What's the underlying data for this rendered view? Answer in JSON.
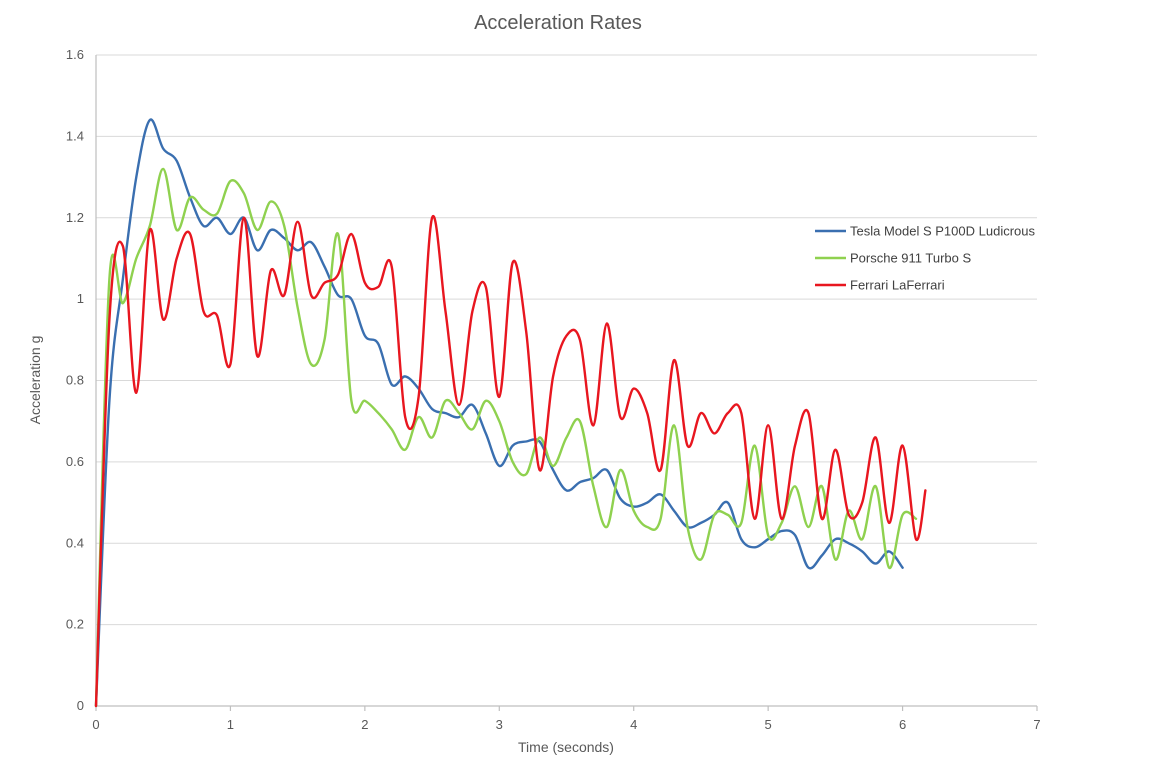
{
  "chart_data": {
    "type": "line",
    "title": "Acceleration Rates",
    "xlabel": "Time (seconds)",
    "ylabel": "Acceleration g",
    "xlim": [
      0,
      7
    ],
    "ylim": [
      0,
      1.6
    ],
    "xticks": [
      0,
      1,
      2,
      3,
      4,
      5,
      6,
      7
    ],
    "yticks": [
      0,
      0.2,
      0.4,
      0.6,
      0.8,
      1,
      1.2,
      1.4,
      1.6
    ],
    "xtick_labels": [
      "0",
      "1",
      "2",
      "3",
      "4",
      "5",
      "6",
      "7"
    ],
    "ytick_labels": [
      "0",
      "0.2",
      "0.4",
      "0.6",
      "0.8",
      "1",
      "1.2",
      "1.4",
      "1.6"
    ],
    "grid": "horizontal",
    "legend_position": "right",
    "series": [
      {
        "name": "Tesla Model S P100D Ludicrous",
        "color": "#3a6fb0",
        "points": [
          [
            0,
            0
          ],
          [
            0.1,
            0.75
          ],
          [
            0.2,
            1.05
          ],
          [
            0.3,
            1.3
          ],
          [
            0.4,
            1.44
          ],
          [
            0.5,
            1.37
          ],
          [
            0.6,
            1.34
          ],
          [
            0.7,
            1.25
          ],
          [
            0.8,
            1.18
          ],
          [
            0.9,
            1.2
          ],
          [
            1.0,
            1.16
          ],
          [
            1.1,
            1.2
          ],
          [
            1.2,
            1.12
          ],
          [
            1.3,
            1.17
          ],
          [
            1.4,
            1.15
          ],
          [
            1.5,
            1.12
          ],
          [
            1.6,
            1.14
          ],
          [
            1.7,
            1.08
          ],
          [
            1.8,
            1.01
          ],
          [
            1.9,
            1.0
          ],
          [
            2.0,
            0.91
          ],
          [
            2.1,
            0.89
          ],
          [
            2.2,
            0.79
          ],
          [
            2.3,
            0.81
          ],
          [
            2.4,
            0.78
          ],
          [
            2.5,
            0.73
          ],
          [
            2.6,
            0.72
          ],
          [
            2.7,
            0.71
          ],
          [
            2.8,
            0.74
          ],
          [
            2.9,
            0.67
          ],
          [
            3.0,
            0.59
          ],
          [
            3.1,
            0.64
          ],
          [
            3.2,
            0.65
          ],
          [
            3.3,
            0.65
          ],
          [
            3.4,
            0.58
          ],
          [
            3.5,
            0.53
          ],
          [
            3.6,
            0.55
          ],
          [
            3.7,
            0.56
          ],
          [
            3.8,
            0.58
          ],
          [
            3.9,
            0.51
          ],
          [
            4.0,
            0.49
          ],
          [
            4.1,
            0.5
          ],
          [
            4.2,
            0.52
          ],
          [
            4.3,
            0.48
          ],
          [
            4.4,
            0.44
          ],
          [
            4.5,
            0.45
          ],
          [
            4.6,
            0.47
          ],
          [
            4.7,
            0.5
          ],
          [
            4.8,
            0.41
          ],
          [
            4.9,
            0.39
          ],
          [
            5.0,
            0.41
          ],
          [
            5.1,
            0.43
          ],
          [
            5.2,
            0.42
          ],
          [
            5.3,
            0.34
          ],
          [
            5.4,
            0.37
          ],
          [
            5.5,
            0.41
          ],
          [
            5.6,
            0.4
          ],
          [
            5.7,
            0.38
          ],
          [
            5.8,
            0.35
          ],
          [
            5.9,
            0.38
          ],
          [
            6.0,
            0.34
          ]
        ]
      },
      {
        "name": "Porsche 911 Turbo S",
        "color": "#8fd14f",
        "points": [
          [
            0,
            0
          ],
          [
            0.1,
            1.05
          ],
          [
            0.2,
            0.99
          ],
          [
            0.3,
            1.1
          ],
          [
            0.4,
            1.18
          ],
          [
            0.5,
            1.32
          ],
          [
            0.6,
            1.17
          ],
          [
            0.7,
            1.25
          ],
          [
            0.8,
            1.22
          ],
          [
            0.9,
            1.21
          ],
          [
            1.0,
            1.29
          ],
          [
            1.1,
            1.26
          ],
          [
            1.2,
            1.17
          ],
          [
            1.3,
            1.24
          ],
          [
            1.4,
            1.18
          ],
          [
            1.5,
            0.98
          ],
          [
            1.6,
            0.84
          ],
          [
            1.7,
            0.9
          ],
          [
            1.8,
            1.16
          ],
          [
            1.9,
            0.75
          ],
          [
            2.0,
            0.75
          ],
          [
            2.1,
            0.72
          ],
          [
            2.2,
            0.68
          ],
          [
            2.3,
            0.63
          ],
          [
            2.4,
            0.71
          ],
          [
            2.5,
            0.66
          ],
          [
            2.6,
            0.75
          ],
          [
            2.7,
            0.72
          ],
          [
            2.8,
            0.68
          ],
          [
            2.9,
            0.75
          ],
          [
            3.0,
            0.7
          ],
          [
            3.1,
            0.6
          ],
          [
            3.2,
            0.57
          ],
          [
            3.3,
            0.66
          ],
          [
            3.4,
            0.59
          ],
          [
            3.5,
            0.66
          ],
          [
            3.6,
            0.7
          ],
          [
            3.7,
            0.54
          ],
          [
            3.8,
            0.44
          ],
          [
            3.9,
            0.58
          ],
          [
            4.0,
            0.48
          ],
          [
            4.1,
            0.44
          ],
          [
            4.2,
            0.46
          ],
          [
            4.3,
            0.69
          ],
          [
            4.4,
            0.44
          ],
          [
            4.5,
            0.36
          ],
          [
            4.6,
            0.47
          ],
          [
            4.7,
            0.47
          ],
          [
            4.8,
            0.45
          ],
          [
            4.9,
            0.64
          ],
          [
            5.0,
            0.42
          ],
          [
            5.1,
            0.45
          ],
          [
            5.2,
            0.54
          ],
          [
            5.3,
            0.44
          ],
          [
            5.4,
            0.54
          ],
          [
            5.5,
            0.36
          ],
          [
            5.6,
            0.48
          ],
          [
            5.7,
            0.41
          ],
          [
            5.8,
            0.54
          ],
          [
            5.9,
            0.34
          ],
          [
            6.0,
            0.47
          ],
          [
            6.1,
            0.46
          ]
        ]
      },
      {
        "name": "Ferrari LaFerrari",
        "color": "#e8161f",
        "points": [
          [
            0,
            0
          ],
          [
            0.1,
            0.95
          ],
          [
            0.2,
            1.13
          ],
          [
            0.3,
            0.77
          ],
          [
            0.4,
            1.17
          ],
          [
            0.5,
            0.95
          ],
          [
            0.6,
            1.1
          ],
          [
            0.7,
            1.16
          ],
          [
            0.8,
            0.97
          ],
          [
            0.9,
            0.96
          ],
          [
            1.0,
            0.84
          ],
          [
            1.1,
            1.2
          ],
          [
            1.2,
            0.86
          ],
          [
            1.3,
            1.07
          ],
          [
            1.4,
            1.01
          ],
          [
            1.5,
            1.19
          ],
          [
            1.6,
            1.01
          ],
          [
            1.7,
            1.04
          ],
          [
            1.8,
            1.06
          ],
          [
            1.9,
            1.16
          ],
          [
            2.0,
            1.04
          ],
          [
            2.1,
            1.03
          ],
          [
            2.2,
            1.08
          ],
          [
            2.3,
            0.71
          ],
          [
            2.4,
            0.76
          ],
          [
            2.5,
            1.2
          ],
          [
            2.6,
            0.97
          ],
          [
            2.7,
            0.74
          ],
          [
            2.8,
            0.97
          ],
          [
            2.9,
            1.03
          ],
          [
            3.0,
            0.76
          ],
          [
            3.1,
            1.09
          ],
          [
            3.2,
            0.92
          ],
          [
            3.3,
            0.58
          ],
          [
            3.4,
            0.81
          ],
          [
            3.5,
            0.91
          ],
          [
            3.6,
            0.9
          ],
          [
            3.7,
            0.69
          ],
          [
            3.8,
            0.94
          ],
          [
            3.9,
            0.71
          ],
          [
            4.0,
            0.78
          ],
          [
            4.1,
            0.72
          ],
          [
            4.2,
            0.58
          ],
          [
            4.3,
            0.85
          ],
          [
            4.4,
            0.64
          ],
          [
            4.5,
            0.72
          ],
          [
            4.6,
            0.67
          ],
          [
            4.7,
            0.72
          ],
          [
            4.8,
            0.72
          ],
          [
            4.9,
            0.46
          ],
          [
            5.0,
            0.69
          ],
          [
            5.1,
            0.46
          ],
          [
            5.2,
            0.64
          ],
          [
            5.3,
            0.72
          ],
          [
            5.4,
            0.46
          ],
          [
            5.5,
            0.63
          ],
          [
            5.6,
            0.47
          ],
          [
            5.7,
            0.5
          ],
          [
            5.8,
            0.66
          ],
          [
            5.9,
            0.45
          ],
          [
            6.0,
            0.64
          ],
          [
            6.1,
            0.41
          ],
          [
            6.17,
            0.53
          ]
        ]
      }
    ]
  }
}
